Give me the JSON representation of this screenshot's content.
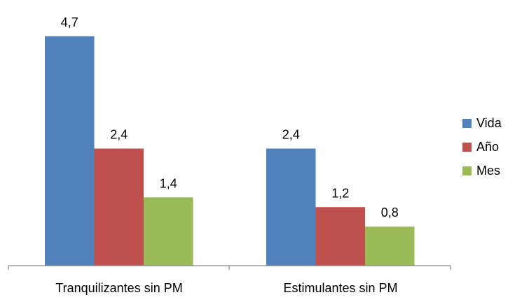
{
  "chart_data": {
    "type": "bar",
    "title": "",
    "xlabel": "",
    "ylabel": "",
    "ylim": [
      0,
      5
    ],
    "grid": false,
    "legend_position": "right",
    "categories": [
      "Tranquilizantes sin PM",
      "Estimulantes sin PM"
    ],
    "series": [
      {
        "name": "Vida",
        "values": [
          4.7,
          2.4
        ],
        "labels": [
          "4,7",
          "2,4"
        ],
        "color": "#4F81BD"
      },
      {
        "name": "Año",
        "values": [
          2.4,
          1.2
        ],
        "labels": [
          "2,4",
          "1,2"
        ],
        "color": "#C0504D"
      },
      {
        "name": "Mes",
        "values": [
          1.4,
          0.8
        ],
        "labels": [
          "1,4",
          "0,8"
        ],
        "color": "#9BBB59"
      }
    ]
  }
}
